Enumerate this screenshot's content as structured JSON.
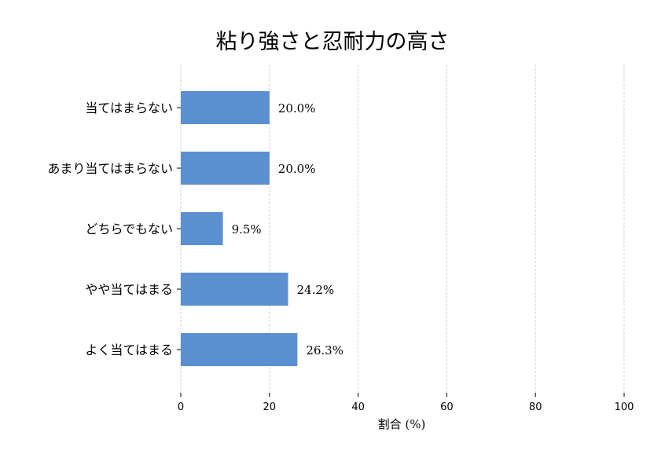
{
  "chart_data": {
    "type": "bar",
    "orientation": "horizontal",
    "title": "粘り強さと忍耐力の高さ",
    "xlabel": "割合 (%)",
    "ylabel": "",
    "categories": [
      "当てはまらない",
      "あまり当てはまらない",
      "どちらでもない",
      "やや当てはまる",
      "よく当てはまる"
    ],
    "values": [
      20.0,
      20.0,
      9.5,
      24.2,
      26.3
    ],
    "value_labels": [
      "20.0%",
      "20.0%",
      "9.5%",
      "24.2%",
      "26.3%"
    ],
    "xlim": [
      0,
      100
    ],
    "xticks": [
      0,
      20,
      40,
      60,
      80,
      100
    ],
    "xtick_labels": [
      "0",
      "20",
      "40",
      "60",
      "80",
      "100"
    ],
    "grid": "vertical dashed",
    "bar_color": "#5b8fd0"
  }
}
